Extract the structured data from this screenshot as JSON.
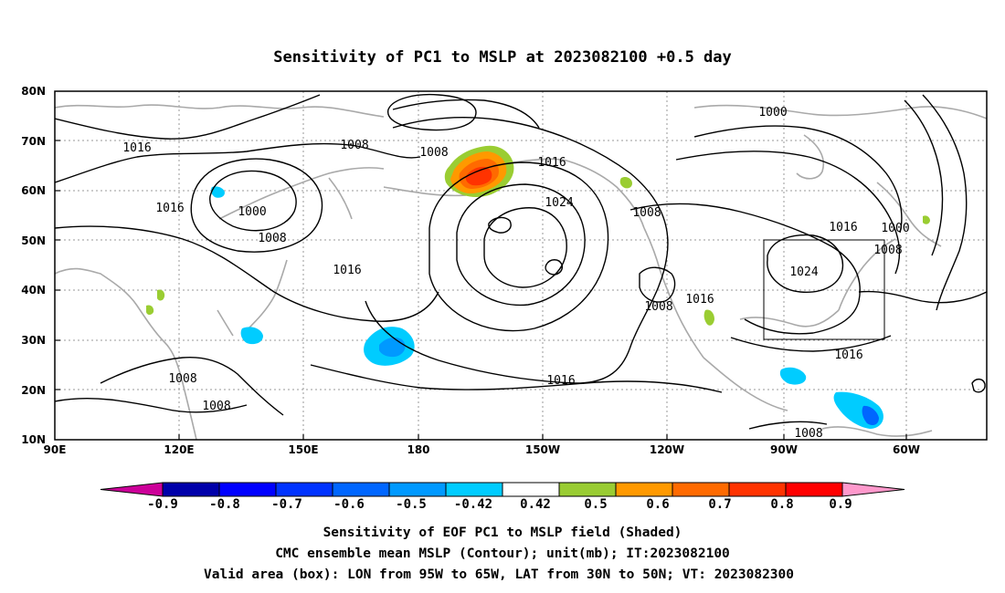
{
  "title": "Sensitivity of PC1 to MSLP at 2023082100 +0.5 day",
  "map": {
    "lon_ticks": [
      "90E",
      "120E",
      "150E",
      "180",
      "150W",
      "120W",
      "90W",
      "60W"
    ],
    "lat_ticks": [
      "80N",
      "70N",
      "60N",
      "50N",
      "40N",
      "30N",
      "20N",
      "10N"
    ],
    "contour_labels": [
      "1016",
      "1008",
      "1008",
      "1016",
      "1024",
      "1016",
      "1000",
      "1000",
      "1008",
      "1008",
      "1016",
      "1024",
      "1008",
      "1016",
      "1016",
      "1000",
      "1008",
      "1008",
      "1008",
      "1016",
      "1016",
      "1008"
    ],
    "box": {
      "lon_from": "95W",
      "lon_to": "65W",
      "lat_from": "30N",
      "lat_to": "50N"
    },
    "shade_colors": {
      "positive": [
        "#9acd32",
        "#ff9900",
        "#ff6a00",
        "#ff3300",
        "#ff0000"
      ],
      "negative": [
        "#00ccff",
        "#0099ff",
        "#0066ff",
        "#0033ff",
        "#0000cc"
      ]
    }
  },
  "colorbar": {
    "labels": [
      "-0.9",
      "-0.8",
      "-0.7",
      "-0.6",
      "-0.5",
      "-0.42",
      "0.42",
      "0.5",
      "0.6",
      "0.7",
      "0.8",
      "0.9"
    ],
    "colors": [
      "#cc0099",
      "#0000aa",
      "#0000ff",
      "#0033ff",
      "#0066ff",
      "#0099ff",
      "#00ccff",
      "#ffffff",
      "#99cc33",
      "#ff9900",
      "#ff6a00",
      "#ff3300",
      "#ff0000",
      "#ff99cc"
    ]
  },
  "caption": {
    "line1": "Sensitivity of EOF PC1 to MSLP field (Shaded)",
    "line2": "CMC ensemble mean MSLP (Contour); unit(mb); IT:2023082100",
    "line3": "Valid area (box): LON from 95W to 65W, LAT from 30N to 50N; VT: 2023082300"
  }
}
